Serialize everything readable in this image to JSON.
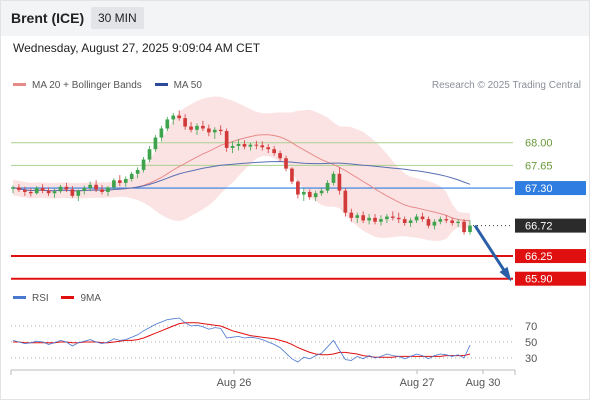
{
  "header": {
    "title": "Brent (ICE)",
    "interval": "30 MIN"
  },
  "datetime": "Wednesday, August 27, 2025 9:09:04 AM CET",
  "legend": {
    "ma20_bb": "MA 20 + Bollinger Bands",
    "ma50": "MA 50",
    "rsi": "RSI",
    "ma9": "9MA"
  },
  "credit": "Research © 2025 Trading Central",
  "colors": {
    "bollinger": "#f4a7a7",
    "ma20": "#e88a8a",
    "ma50": "#5a6fb3",
    "pivot": "#2f7de1",
    "support": "#e01010",
    "resistance": "#a9d18e",
    "last": "#2b2b2b",
    "arrow": "#2a5fa8",
    "rsi": "#4a78d1",
    "rsi_ma": "#e01010"
  },
  "chart_data": [
    {
      "type": "candlestick",
      "x_tick_labels": [
        "Aug 26",
        "Aug 27",
        "Aug 30"
      ],
      "price_levels": [
        {
          "value": 68.0,
          "label": "68.00",
          "kind": "resistance"
        },
        {
          "value": 67.65,
          "label": "67.65",
          "kind": "resistance"
        },
        {
          "value": 67.3,
          "label": "67.30",
          "kind": "pivot"
        },
        {
          "value": 66.72,
          "label": "66.72",
          "kind": "last"
        },
        {
          "value": 66.25,
          "label": "66.25",
          "kind": "support"
        },
        {
          "value": 65.9,
          "label": "65.90",
          "kind": "support"
        }
      ],
      "ylim": [
        65.88,
        68.66
      ],
      "candles": [
        [
          67.29,
          67.34,
          67.22,
          67.31
        ],
        [
          67.31,
          67.36,
          67.24,
          67.27
        ],
        [
          67.27,
          67.32,
          67.18,
          67.24
        ],
        [
          67.24,
          67.3,
          67.17,
          67.22
        ],
        [
          67.22,
          67.33,
          67.2,
          67.3
        ],
        [
          67.3,
          67.36,
          67.22,
          67.26
        ],
        [
          67.26,
          67.31,
          67.18,
          67.22
        ],
        [
          67.22,
          67.29,
          67.15,
          67.25
        ],
        [
          67.25,
          67.35,
          67.22,
          67.32
        ],
        [
          67.32,
          67.38,
          67.24,
          67.28
        ],
        [
          67.28,
          67.33,
          67.15,
          67.18
        ],
        [
          67.18,
          67.28,
          67.1,
          67.26
        ],
        [
          67.26,
          67.34,
          67.2,
          67.3
        ],
        [
          67.3,
          67.4,
          67.25,
          67.35
        ],
        [
          67.35,
          67.42,
          67.24,
          67.28
        ],
        [
          67.28,
          67.35,
          67.2,
          67.24
        ],
        [
          67.24,
          67.33,
          67.18,
          67.31
        ],
        [
          67.31,
          67.45,
          67.28,
          67.42
        ],
        [
          67.42,
          67.5,
          67.33,
          67.38
        ],
        [
          67.38,
          67.48,
          67.32,
          67.44
        ],
        [
          67.44,
          67.55,
          67.4,
          67.52
        ],
        [
          67.52,
          67.62,
          67.45,
          67.58
        ],
        [
          67.58,
          67.78,
          67.54,
          67.74
        ],
        [
          67.74,
          67.95,
          67.7,
          67.9
        ],
        [
          67.9,
          68.12,
          67.86,
          68.08
        ],
        [
          68.08,
          68.26,
          68.02,
          68.22
        ],
        [
          68.22,
          68.4,
          68.18,
          68.36
        ],
        [
          68.36,
          68.46,
          68.28,
          68.42
        ],
        [
          68.42,
          68.5,
          68.34,
          68.38
        ],
        [
          68.38,
          68.44,
          68.2,
          68.25
        ],
        [
          68.25,
          68.32,
          68.16,
          68.2
        ],
        [
          68.2,
          68.3,
          68.12,
          68.26
        ],
        [
          68.26,
          68.34,
          68.18,
          68.22
        ],
        [
          68.22,
          68.28,
          68.1,
          68.16
        ],
        [
          68.16,
          68.24,
          68.06,
          68.2
        ],
        [
          68.2,
          68.27,
          68.12,
          68.18
        ],
        [
          68.18,
          68.22,
          67.86,
          67.92
        ],
        [
          67.92,
          68.02,
          67.84,
          67.95
        ],
        [
          67.95,
          68.05,
          67.88,
          67.98
        ],
        [
          67.98,
          68.04,
          67.9,
          67.94
        ],
        [
          67.94,
          68.0,
          67.88,
          67.97
        ],
        [
          67.97,
          68.03,
          67.9,
          67.96
        ],
        [
          67.96,
          68.02,
          67.88,
          67.93
        ],
        [
          67.93,
          67.98,
          67.84,
          67.9
        ],
        [
          67.9,
          67.95,
          67.8,
          67.84
        ],
        [
          67.84,
          67.88,
          67.72,
          67.76
        ],
        [
          67.76,
          67.8,
          67.56,
          67.6
        ],
        [
          67.6,
          67.62,
          67.36,
          67.4
        ],
        [
          67.4,
          67.42,
          67.14,
          67.2
        ],
        [
          67.2,
          67.3,
          67.1,
          67.24
        ],
        [
          67.24,
          67.28,
          67.12,
          67.16
        ],
        [
          67.16,
          67.26,
          67.1,
          67.22
        ],
        [
          67.22,
          67.3,
          67.18,
          67.26
        ],
        [
          67.26,
          67.42,
          67.22,
          67.38
        ],
        [
          67.38,
          67.56,
          67.34,
          67.52
        ],
        [
          67.52,
          67.62,
          67.2,
          67.26
        ],
        [
          67.26,
          67.3,
          66.86,
          66.92
        ],
        [
          66.92,
          66.98,
          66.78,
          66.84
        ],
        [
          66.84,
          66.92,
          66.76,
          66.88
        ],
        [
          66.88,
          66.94,
          66.76,
          66.8
        ],
        [
          66.8,
          66.9,
          66.74,
          66.84
        ],
        [
          66.84,
          66.9,
          66.74,
          66.78
        ],
        [
          66.78,
          66.88,
          66.72,
          66.82
        ],
        [
          66.82,
          66.9,
          66.76,
          66.86
        ],
        [
          66.86,
          66.94,
          66.8,
          66.84
        ],
        [
          66.84,
          66.92,
          66.76,
          66.82
        ],
        [
          66.82,
          66.86,
          66.72,
          66.76
        ],
        [
          66.76,
          66.84,
          66.7,
          66.8
        ],
        [
          66.8,
          66.9,
          66.76,
          66.86
        ],
        [
          66.86,
          66.92,
          66.78,
          66.82
        ],
        [
          66.82,
          66.86,
          66.68,
          66.72
        ],
        [
          66.72,
          66.82,
          66.66,
          66.78
        ],
        [
          66.78,
          66.86,
          66.74,
          66.82
        ],
        [
          66.82,
          66.88,
          66.76,
          66.8
        ],
        [
          66.8,
          66.84,
          66.72,
          66.76
        ],
        [
          66.76,
          66.82,
          66.7,
          66.78
        ],
        [
          66.78,
          66.82,
          66.58,
          66.62
        ],
        [
          66.62,
          66.8,
          66.58,
          66.72
        ]
      ]
    },
    {
      "type": "line",
      "name": "RSI",
      "ylim": [
        20,
        80
      ],
      "y_tick_labels": [
        "70",
        "50",
        "30"
      ],
      "rsi": [
        52,
        50,
        48,
        49,
        51,
        50,
        47,
        49,
        52,
        50,
        45,
        49,
        51,
        53,
        50,
        48,
        50,
        54,
        52,
        53,
        56,
        59,
        64,
        68,
        72,
        75,
        78,
        79,
        80,
        74,
        70,
        71,
        69,
        66,
        68,
        67,
        55,
        56,
        57,
        55,
        56,
        55,
        53,
        50,
        47,
        43,
        36,
        29,
        25,
        31,
        29,
        33,
        36,
        44,
        52,
        40,
        28,
        27,
        32,
        29,
        33,
        30,
        32,
        35,
        33,
        32,
        29,
        32,
        35,
        33,
        29,
        33,
        35,
        34,
        32,
        34,
        30,
        46
      ],
      "rsi_ma": [
        50,
        50,
        49,
        49,
        49,
        49,
        49,
        49,
        50,
        50,
        49,
        49,
        50,
        50,
        50,
        49,
        49,
        50,
        51,
        52,
        52,
        53,
        55,
        58,
        61,
        64,
        67,
        70,
        73,
        74,
        74,
        74,
        73,
        72,
        71,
        70,
        67,
        64,
        62,
        60,
        58,
        57,
        56,
        55,
        54,
        52,
        50,
        47,
        43,
        40,
        37,
        35,
        34,
        34,
        35,
        37,
        37,
        36,
        35,
        33,
        32,
        31,
        31,
        31,
        31,
        32,
        32,
        32,
        32,
        32,
        32,
        32,
        32,
        33,
        33,
        33,
        33,
        35
      ]
    }
  ]
}
